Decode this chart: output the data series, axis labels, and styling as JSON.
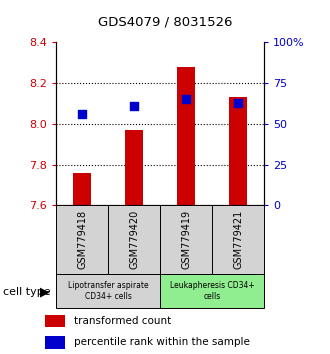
{
  "title": "GDS4079 / 8031526",
  "samples": [
    "GSM779418",
    "GSM779420",
    "GSM779419",
    "GSM779421"
  ],
  "transformed_counts": [
    7.76,
    7.97,
    8.28,
    8.13
  ],
  "percentile_ranks": [
    56,
    61,
    65,
    63
  ],
  "ylim_left": [
    7.6,
    8.4
  ],
  "ylim_right": [
    0,
    100
  ],
  "yticks_left": [
    7.6,
    7.8,
    8.0,
    8.2,
    8.4
  ],
  "yticks_right": [
    0,
    25,
    50,
    75,
    100
  ],
  "ytick_labels_right": [
    "0",
    "25",
    "50",
    "75",
    "100%"
  ],
  "bar_color": "#cc0000",
  "dot_color": "#0000cc",
  "bar_width": 0.35,
  "dot_size": 35,
  "cell_type_colors": [
    "#d3d3d3",
    "#90ee90"
  ],
  "cell_type_labels": [
    "Lipotransfer aspirate\nCD34+ cells",
    "Leukapheresis CD34+\ncells"
  ],
  "cell_type_label": "cell type",
  "legend_red_label": "transformed count",
  "legend_blue_label": "percentile rank within the sample",
  "grid_lines": [
    7.8,
    8.0,
    8.2
  ],
  "sample_box_color": "#d3d3d3"
}
